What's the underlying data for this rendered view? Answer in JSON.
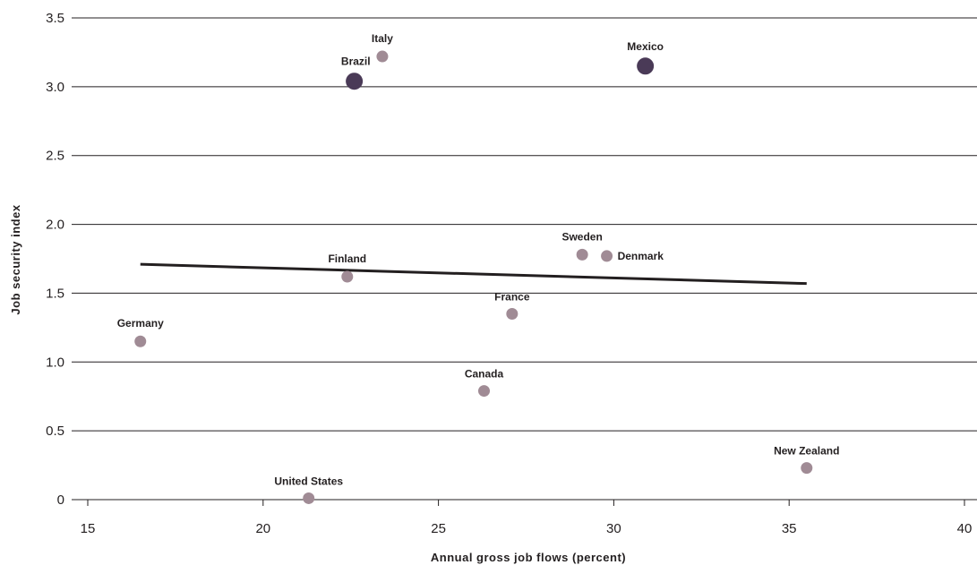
{
  "chart_data": {
    "type": "scatter",
    "title": "",
    "xlabel": "Annual gross job flows (percent)",
    "ylabel": "Job security index",
    "xlim": [
      15,
      40
    ],
    "ylim": [
      0,
      3.5
    ],
    "xticks": [
      "15",
      "20",
      "25",
      "30",
      "35",
      "40"
    ],
    "yticks": [
      "0",
      "0.5",
      "1.0",
      "1.5",
      "2.0",
      "2.5",
      "3.0",
      "3.5"
    ],
    "grid": "horizontal",
    "colors": {
      "point": "#a08b95",
      "highlight": "#4a3a57",
      "trend": "#231f20",
      "grid": "#231f20"
    },
    "points": [
      {
        "name": "Italy",
        "x": 23.4,
        "y": 3.22,
        "highlight": false
      },
      {
        "name": "Brazil",
        "x": 22.6,
        "y": 3.04,
        "highlight": true
      },
      {
        "name": "Mexico",
        "x": 30.9,
        "y": 3.15,
        "highlight": true
      },
      {
        "name": "Sweden",
        "x": 29.1,
        "y": 1.78,
        "highlight": false
      },
      {
        "name": "Denmark",
        "x": 29.8,
        "y": 1.77,
        "highlight": false
      },
      {
        "name": "Finland",
        "x": 22.4,
        "y": 1.62,
        "highlight": false
      },
      {
        "name": "France",
        "x": 27.1,
        "y": 1.35,
        "highlight": false
      },
      {
        "name": "Germany",
        "x": 16.5,
        "y": 1.15,
        "highlight": false
      },
      {
        "name": "Canada",
        "x": 26.3,
        "y": 0.79,
        "highlight": false
      },
      {
        "name": "New Zealand",
        "x": 35.5,
        "y": 0.23,
        "highlight": false
      },
      {
        "name": "United States",
        "x": 21.3,
        "y": 0.01,
        "highlight": false
      }
    ],
    "trendline": {
      "x": [
        16.5,
        35.5
      ],
      "y": [
        1.71,
        1.57
      ]
    }
  }
}
